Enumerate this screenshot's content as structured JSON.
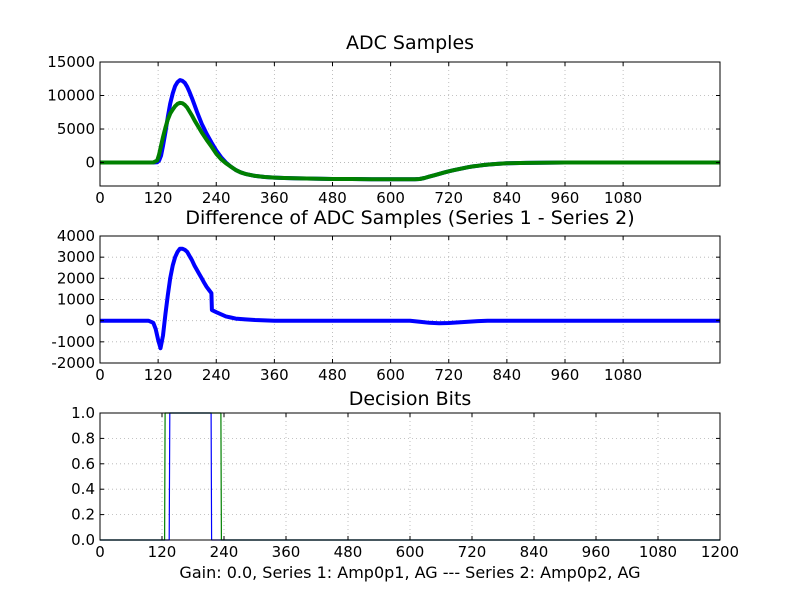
{
  "figure": {
    "caption": "Gain: 0.0, Series 1: Amp0p1, AG --- Series 2: Amp0p2, AG",
    "colors": {
      "series1": "#0000ff",
      "series2": "#008000",
      "grid": "#b0b0b0",
      "axes": "#000000"
    }
  },
  "chart_data": [
    {
      "type": "line",
      "title": "ADC Samples",
      "xlabel": "",
      "ylabel": "",
      "xlim": [
        0,
        1280
      ],
      "ylim": [
        -3500,
        15000
      ],
      "xticks": [
        0,
        120,
        240,
        360,
        480,
        600,
        720,
        840,
        960,
        1080
      ],
      "yticks": [
        0,
        5000,
        10000,
        15000
      ],
      "grid": true,
      "series": [
        {
          "color": "#0000ff",
          "x": [
            0,
            100,
            110,
            118,
            122,
            126,
            130,
            135,
            140,
            145,
            150,
            155,
            160,
            165,
            170,
            175,
            180,
            185,
            190,
            195,
            200,
            210,
            220,
            230,
            240,
            250,
            260,
            270,
            280,
            290,
            300,
            320,
            340,
            360,
            380,
            400,
            440,
            480,
            520,
            560,
            600,
            630,
            650,
            660,
            670,
            680,
            690,
            700,
            710,
            720,
            730,
            740,
            750,
            760,
            770,
            780,
            790,
            800,
            820,
            840,
            880,
            960,
            1080,
            1280
          ],
          "y": [
            0,
            0,
            0,
            50,
            300,
            1000,
            2500,
            4500,
            6800,
            8800,
            10300,
            11400,
            12000,
            12300,
            12200,
            11900,
            11300,
            10500,
            9600,
            8600,
            7600,
            5800,
            4300,
            3000,
            1800,
            800,
            0,
            -600,
            -1100,
            -1450,
            -1700,
            -2000,
            -2150,
            -2250,
            -2300,
            -2350,
            -2400,
            -2450,
            -2450,
            -2480,
            -2500,
            -2500,
            -2500,
            -2450,
            -2300,
            -2100,
            -1900,
            -1700,
            -1500,
            -1300,
            -1150,
            -1000,
            -850,
            -700,
            -580,
            -480,
            -380,
            -300,
            -200,
            -120,
            -50,
            0,
            0,
            0
          ]
        },
        {
          "color": "#008000",
          "x": [
            0,
            100,
            110,
            118,
            122,
            126,
            130,
            135,
            140,
            145,
            150,
            155,
            160,
            165,
            170,
            175,
            180,
            185,
            190,
            195,
            200,
            210,
            220,
            230,
            240,
            250,
            260,
            270,
            280,
            290,
            300,
            320,
            340,
            360,
            380,
            400,
            440,
            480,
            520,
            560,
            600,
            630,
            650,
            660,
            670,
            680,
            690,
            700,
            710,
            720,
            730,
            740,
            750,
            760,
            770,
            780,
            790,
            800,
            820,
            840,
            880,
            960,
            1080,
            1280
          ],
          "y": [
            0,
            0,
            20,
            300,
            1200,
            2500,
            3800,
            5200,
            6400,
            7300,
            7900,
            8400,
            8750,
            8900,
            8850,
            8600,
            8200,
            7600,
            7000,
            6300,
            5700,
            4500,
            3400,
            2400,
            1300,
            500,
            -100,
            -600,
            -1100,
            -1450,
            -1700,
            -2000,
            -2150,
            -2250,
            -2300,
            -2350,
            -2400,
            -2450,
            -2450,
            -2480,
            -2500,
            -2500,
            -2500,
            -2450,
            -2300,
            -2100,
            -1900,
            -1700,
            -1500,
            -1300,
            -1150,
            -1000,
            -850,
            -700,
            -580,
            -480,
            -380,
            -300,
            -200,
            -120,
            -50,
            0,
            0,
            0
          ]
        }
      ]
    },
    {
      "type": "line",
      "title": "Difference of ADC Samples (Series 1 - Series 2)",
      "xlabel": "",
      "ylabel": "",
      "xlim": [
        0,
        1280
      ],
      "ylim": [
        -2000,
        4000
      ],
      "xticks": [
        0,
        120,
        240,
        360,
        480,
        600,
        720,
        840,
        960,
        1080
      ],
      "yticks": [
        -2000,
        -1000,
        0,
        1000,
        2000,
        3000,
        4000
      ],
      "grid": true,
      "series": [
        {
          "color": "#0000ff",
          "x": [
            0,
            100,
            110,
            115,
            120,
            125,
            130,
            135,
            140,
            145,
            150,
            155,
            160,
            165,
            170,
            175,
            180,
            185,
            190,
            195,
            200,
            205,
            210,
            215,
            220,
            225,
            230,
            231,
            240,
            250,
            260,
            270,
            280,
            300,
            320,
            360,
            400,
            480,
            560,
            640,
            660,
            680,
            700,
            720,
            740,
            760,
            780,
            800,
            840,
            960,
            1080,
            1280
          ],
          "y": [
            0,
            0,
            -100,
            -400,
            -900,
            -1300,
            -700,
            300,
            1200,
            2000,
            2600,
            3000,
            3250,
            3400,
            3400,
            3350,
            3250,
            3050,
            2850,
            2600,
            2400,
            2200,
            2000,
            1800,
            1600,
            1450,
            1300,
            500,
            400,
            300,
            200,
            150,
            100,
            60,
            30,
            0,
            0,
            0,
            0,
            0,
            -50,
            -100,
            -120,
            -110,
            -80,
            -50,
            -20,
            0,
            0,
            0,
            0,
            0
          ]
        }
      ]
    },
    {
      "type": "line",
      "title": "Decision Bits",
      "xlabel": "",
      "ylabel": "",
      "xlim": [
        0,
        1200
      ],
      "ylim": [
        0,
        1
      ],
      "xticks": [
        0,
        120,
        240,
        360,
        480,
        600,
        720,
        840,
        960,
        1080,
        1200
      ],
      "xticklabels": [
        "0",
        "120",
        "240",
        "360",
        "480",
        "600",
        "720",
        "840",
        "960",
        "1080",
        "1200"
      ],
      "yticks": [
        0,
        0.2,
        0.4,
        0.6,
        0.8,
        1.0
      ],
      "yticklabels": [
        "0.0",
        "0.2",
        "0.4",
        "0.6",
        "0.8",
        "1.0"
      ],
      "grid": true,
      "series": [
        {
          "color": "#0000ff",
          "x": [
            0,
            134,
            135,
            215,
            216,
            1200
          ],
          "y": [
            0,
            0,
            1,
            1,
            0,
            0
          ]
        },
        {
          "color": "#008000",
          "x": [
            0,
            125,
            126,
            234,
            235,
            1200
          ],
          "y": [
            0,
            0,
            1,
            1,
            0,
            0
          ]
        }
      ]
    }
  ]
}
